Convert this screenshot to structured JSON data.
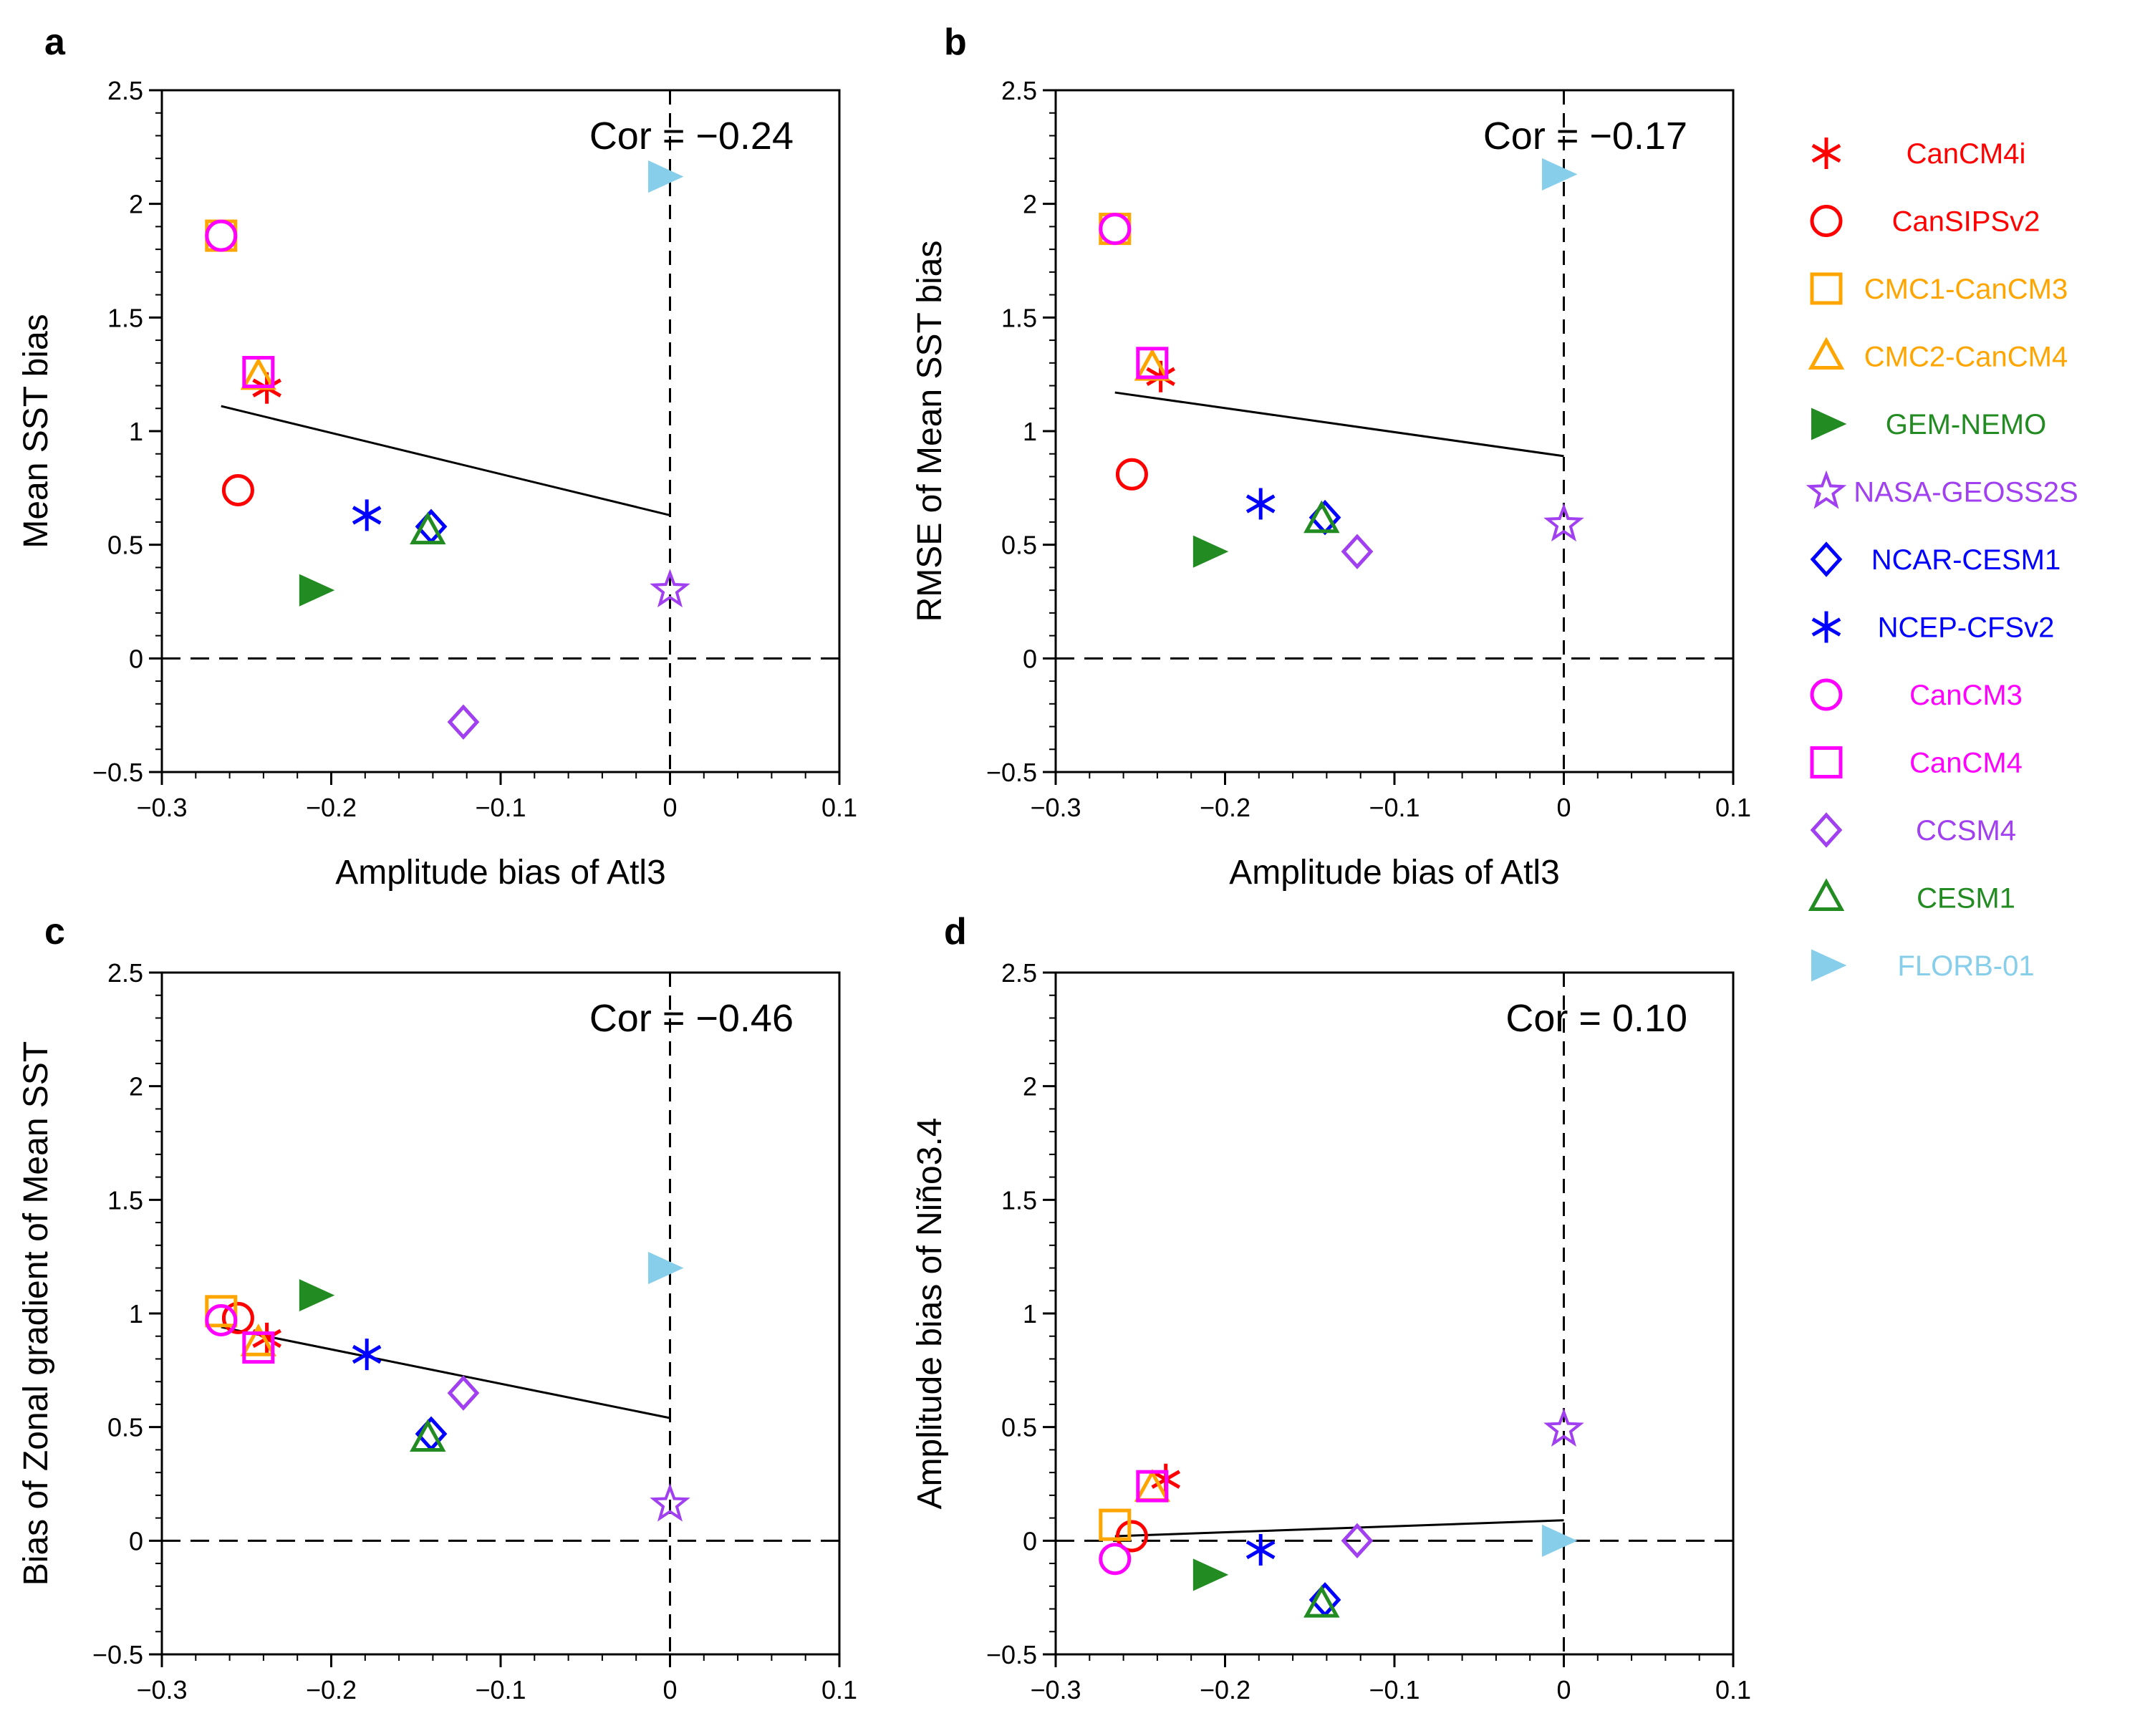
{
  "chart_data": [
    {
      "panel": "a",
      "type": "scatter",
      "xlabel": "Amplitude bias of Atl3",
      "ylabel": "Mean SST bias",
      "xlim": [
        -0.3,
        0.1
      ],
      "ylim": [
        -0.5,
        2.5
      ],
      "xticks": [
        -0.3,
        -0.2,
        -0.1,
        0,
        0.1
      ],
      "yticks": [
        -0.5,
        0,
        0.5,
        1,
        1.5,
        2,
        2.5
      ],
      "xtick_labels": [
        "−0.3",
        "−0.2",
        "−0.1",
        "0",
        "0.1"
      ],
      "ytick_labels": [
        "−0.5",
        "0",
        "0.5",
        "1",
        "1.5",
        "2",
        "2.5"
      ],
      "annotation": "Cor = −0.24",
      "regression_line": {
        "x": [
          -0.265,
          0
        ],
        "y": [
          1.11,
          0.63
        ]
      },
      "points": [
        {
          "model": "CanCM4i",
          "x": -0.238,
          "y": 1.19
        },
        {
          "model": "CanSIPSv2",
          "x": -0.255,
          "y": 0.74
        },
        {
          "model": "CMC1-CanCM3",
          "x": -0.265,
          "y": 1.86
        },
        {
          "model": "CMC2-CanCM4",
          "x": -0.243,
          "y": 1.24
        },
        {
          "model": "GEM-NEMO",
          "x": -0.21,
          "y": 0.3
        },
        {
          "model": "NASA-GEOSS2S",
          "x": 0.0,
          "y": 0.3
        },
        {
          "model": "NCAR-CESM1",
          "x": -0.141,
          "y": 0.58
        },
        {
          "model": "NCEP-CFSv2",
          "x": -0.179,
          "y": 0.63
        },
        {
          "model": "CanCM3",
          "x": -0.265,
          "y": 1.86
        },
        {
          "model": "CanCM4",
          "x": -0.243,
          "y": 1.26
        },
        {
          "model": "CCSM4",
          "x": -0.122,
          "y": -0.28
        },
        {
          "model": "CESM1",
          "x": -0.143,
          "y": 0.56
        },
        {
          "model": "FLORB-01",
          "x": -0.004,
          "y": 2.12
        }
      ]
    },
    {
      "panel": "b",
      "type": "scatter",
      "xlabel": "Amplitude bias of Atl3",
      "ylabel": "RMSE of Mean SST bias",
      "xlim": [
        -0.3,
        0.1
      ],
      "ylim": [
        -0.5,
        2.5
      ],
      "xticks": [
        -0.3,
        -0.2,
        -0.1,
        0,
        0.1
      ],
      "yticks": [
        -0.5,
        0,
        0.5,
        1,
        1.5,
        2,
        2.5
      ],
      "xtick_labels": [
        "−0.3",
        "−0.2",
        "−0.1",
        "0",
        "0.1"
      ],
      "ytick_labels": [
        "−0.5",
        "0",
        "0.5",
        "1",
        "1.5",
        "2",
        "2.5"
      ],
      "annotation": "Cor = −0.17",
      "regression_line": {
        "x": [
          -0.265,
          0
        ],
        "y": [
          1.17,
          0.89
        ]
      },
      "points": [
        {
          "model": "CanCM4i",
          "x": -0.238,
          "y": 1.24
        },
        {
          "model": "CanSIPSv2",
          "x": -0.255,
          "y": 0.81
        },
        {
          "model": "CMC1-CanCM3",
          "x": -0.265,
          "y": 1.89
        },
        {
          "model": "CMC2-CanCM4",
          "x": -0.243,
          "y": 1.28
        },
        {
          "model": "GEM-NEMO",
          "x": -0.21,
          "y": 0.47
        },
        {
          "model": "NASA-GEOSS2S",
          "x": 0.0,
          "y": 0.59
        },
        {
          "model": "NCAR-CESM1",
          "x": -0.141,
          "y": 0.62
        },
        {
          "model": "NCEP-CFSv2",
          "x": -0.179,
          "y": 0.68
        },
        {
          "model": "CanCM3",
          "x": -0.265,
          "y": 1.89
        },
        {
          "model": "CanCM4",
          "x": -0.243,
          "y": 1.3
        },
        {
          "model": "CCSM4",
          "x": -0.122,
          "y": 0.47
        },
        {
          "model": "CESM1",
          "x": -0.143,
          "y": 0.61
        },
        {
          "model": "FLORB-01",
          "x": -0.004,
          "y": 2.13
        }
      ]
    },
    {
      "panel": "c",
      "type": "scatter",
      "xlabel": "",
      "ylabel": "Bias of Zonal gradient of Mean SST",
      "xlim": [
        -0.3,
        0.1
      ],
      "ylim": [
        -0.5,
        2.5
      ],
      "xticks": [
        -0.3,
        -0.2,
        -0.1,
        0,
        0.1
      ],
      "yticks": [
        -0.5,
        0,
        0.5,
        1,
        1.5,
        2,
        2.5
      ],
      "xtick_labels": [
        "−0.3",
        "−0.2",
        "−0.1",
        "0",
        "0.1"
      ],
      "ytick_labels": [
        "−0.5",
        "0",
        "0.5",
        "1",
        "1.5",
        "2",
        "2.5"
      ],
      "annotation": "Cor = −0.46",
      "regression_line": {
        "x": [
          -0.265,
          0
        ],
        "y": [
          0.94,
          0.54
        ]
      },
      "points": [
        {
          "model": "CanCM4i",
          "x": -0.238,
          "y": 0.89
        },
        {
          "model": "CanSIPSv2",
          "x": -0.255,
          "y": 0.98
        },
        {
          "model": "CMC1-CanCM3",
          "x": -0.265,
          "y": 1.01
        },
        {
          "model": "CMC2-CanCM4",
          "x": -0.243,
          "y": 0.87
        },
        {
          "model": "GEM-NEMO",
          "x": -0.21,
          "y": 1.08
        },
        {
          "model": "NASA-GEOSS2S",
          "x": 0.0,
          "y": 0.16
        },
        {
          "model": "NCAR-CESM1",
          "x": -0.141,
          "y": 0.47
        },
        {
          "model": "NCEP-CFSv2",
          "x": -0.179,
          "y": 0.82
        },
        {
          "model": "CanCM3",
          "x": -0.265,
          "y": 0.97
        },
        {
          "model": "CanCM4",
          "x": -0.243,
          "y": 0.85
        },
        {
          "model": "CCSM4",
          "x": -0.122,
          "y": 0.65
        },
        {
          "model": "CESM1",
          "x": -0.143,
          "y": 0.45
        },
        {
          "model": "FLORB-01",
          "x": -0.004,
          "y": 1.2
        }
      ]
    },
    {
      "panel": "d",
      "type": "scatter",
      "xlabel": "",
      "ylabel": "Amplitude bias of Niño3.4",
      "xlim": [
        -0.3,
        0.1
      ],
      "ylim": [
        -0.5,
        2.5
      ],
      "xticks": [
        -0.3,
        -0.2,
        -0.1,
        0,
        0.1
      ],
      "yticks": [
        -0.5,
        0,
        0.5,
        1,
        1.5,
        2,
        2.5
      ],
      "xtick_labels": [
        "−0.3",
        "−0.2",
        "−0.1",
        "0",
        "0.1"
      ],
      "ytick_labels": [
        "−0.5",
        "0",
        "0.5",
        "1",
        "1.5",
        "2",
        "2.5"
      ],
      "annotation": "Cor = 0.10",
      "regression_line": {
        "x": [
          -0.265,
          0
        ],
        "y": [
          0.02,
          0.09
        ]
      },
      "points": [
        {
          "model": "CanCM4i",
          "x": -0.235,
          "y": 0.27
        },
        {
          "model": "CanSIPSv2",
          "x": -0.255,
          "y": 0.02
        },
        {
          "model": "CMC1-CanCM3",
          "x": -0.265,
          "y": 0.07
        },
        {
          "model": "CMC2-CanCM4",
          "x": -0.243,
          "y": 0.23
        },
        {
          "model": "GEM-NEMO",
          "x": -0.21,
          "y": -0.15
        },
        {
          "model": "NASA-GEOSS2S",
          "x": 0.0,
          "y": 0.49
        },
        {
          "model": "NCAR-CESM1",
          "x": -0.141,
          "y": -0.26
        },
        {
          "model": "NCEP-CFSv2",
          "x": -0.179,
          "y": -0.04
        },
        {
          "model": "CanCM3",
          "x": -0.265,
          "y": -0.08
        },
        {
          "model": "CanCM4",
          "x": -0.243,
          "y": 0.24
        },
        {
          "model": "CCSM4",
          "x": -0.122,
          "y": 0.0
        },
        {
          "model": "CESM1",
          "x": -0.143,
          "y": -0.28
        },
        {
          "model": "FLORB-01",
          "x": -0.004,
          "y": 0.0
        }
      ]
    }
  ],
  "legend": [
    {
      "model": "CanCM4i",
      "label": "CanCM4i",
      "marker": "asterisk",
      "color": "#ff0000"
    },
    {
      "model": "CanSIPSv2",
      "label": "CanSIPSv2",
      "marker": "circle",
      "color": "#ff0000"
    },
    {
      "model": "CMC1-CanCM3",
      "label": "CMC1-CanCM3",
      "marker": "square",
      "color": "#ffa500"
    },
    {
      "model": "CMC2-CanCM4",
      "label": "CMC2-CanCM4",
      "marker": "triangle",
      "color": "#ffa500"
    },
    {
      "model": "GEM-NEMO",
      "label": "GEM-NEMO",
      "marker": "triangle-right-filled",
      "color": "#228b22"
    },
    {
      "model": "NASA-GEOSS2S",
      "label": "NASA-GEOSS2S",
      "marker": "star",
      "color": "#a040f0"
    },
    {
      "model": "NCAR-CESM1",
      "label": "NCAR-CESM1",
      "marker": "diamond",
      "color": "#0000ff"
    },
    {
      "model": "NCEP-CFSv2",
      "label": "NCEP-CFSv2",
      "marker": "asterisk",
      "color": "#0000ff"
    },
    {
      "model": "CanCM3",
      "label": "CanCM3",
      "marker": "circle",
      "color": "#ff00ff"
    },
    {
      "model": "CanCM4",
      "label": "CanCM4",
      "marker": "square",
      "color": "#ff00ff"
    },
    {
      "model": "CCSM4",
      "label": "CCSM4",
      "marker": "diamond",
      "color": "#a040f0"
    },
    {
      "model": "CESM1",
      "label": "CESM1",
      "marker": "triangle",
      "color": "#228b22"
    },
    {
      "model": "FLORB-01",
      "label": "FLORB-01",
      "marker": "triangle-right-filled",
      "color": "#87ceeb"
    }
  ]
}
